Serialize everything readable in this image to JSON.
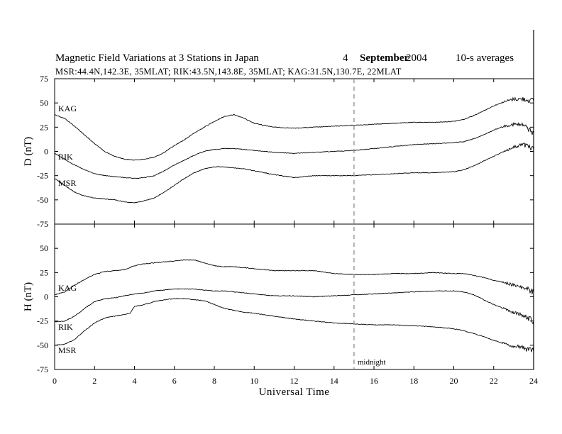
{
  "header": {
    "title": "Magnetic Field Variations at 3 Stations in Japan",
    "day": "4",
    "month": "September",
    "year": "2004",
    "averaging": "10-s averages",
    "stations": "MSR:44.4N,142.3E, 35MLAT;  RIK:43.5N,143.8E, 35MLAT;  KAG:31.5N,130.7E, 22MLAT"
  },
  "chart_data": [
    {
      "type": "line",
      "ylabel": "D (nT)",
      "ylim": [
        -75,
        75
      ],
      "yticks": [
        -75,
        -50,
        -25,
        0,
        25,
        50,
        75
      ],
      "xlim": [
        0,
        24
      ],
      "series": [
        {
          "name": "KAG",
          "x": [
            0,
            0.5,
            1,
            1.5,
            2,
            2.5,
            3,
            3.5,
            4,
            4.5,
            5,
            5.5,
            6,
            6.5,
            7,
            7.5,
            8,
            8.5,
            9,
            9.5,
            10,
            11,
            12,
            13,
            14,
            15,
            16,
            17,
            18,
            19,
            20,
            20.5,
            21,
            21.5,
            22,
            22.5,
            23,
            23.5,
            24
          ],
          "y": [
            38,
            34,
            26,
            17,
            8,
            0,
            -5,
            -8,
            -9,
            -8,
            -6,
            -1,
            6,
            12,
            19,
            25,
            31,
            36,
            38,
            34,
            29,
            25,
            24,
            25,
            26,
            27,
            28,
            29,
            30,
            30,
            31,
            33,
            37,
            42,
            47,
            51,
            54,
            54,
            52
          ]
        },
        {
          "name": "RIK",
          "x": [
            0,
            0.5,
            1,
            1.5,
            2,
            2.5,
            3,
            3.5,
            4,
            4.5,
            5,
            5.5,
            6,
            6.5,
            7,
            7.5,
            8,
            8.5,
            9,
            9.5,
            10,
            11,
            12,
            13,
            14,
            15,
            16,
            17,
            18,
            19,
            20,
            20.5,
            21,
            21.5,
            22,
            22.5,
            23,
            23.5,
            24
          ],
          "y": [
            -2,
            -8,
            -14,
            -19,
            -23,
            -25,
            -26,
            -27,
            -28,
            -27,
            -25,
            -20,
            -14,
            -9,
            -4,
            0,
            2,
            3,
            3,
            2,
            1,
            -1,
            -2,
            -1,
            0,
            1,
            3,
            5,
            7,
            8,
            9,
            10,
            13,
            17,
            22,
            26,
            28,
            27,
            19
          ]
        },
        {
          "name": "MSR",
          "x": [
            0,
            0.5,
            1,
            1.5,
            2,
            2.5,
            3,
            3.5,
            4,
            4.5,
            5,
            5.5,
            6,
            6.5,
            7,
            7.5,
            8,
            8.5,
            9,
            9.5,
            10,
            11,
            12,
            13,
            14,
            15,
            16,
            17,
            18,
            19,
            20,
            20.5,
            21,
            21.5,
            22,
            22.5,
            23,
            23.5,
            24
          ],
          "y": [
            -28,
            -35,
            -42,
            -46,
            -48,
            -49,
            -50,
            -52,
            -53,
            -51,
            -48,
            -42,
            -35,
            -28,
            -22,
            -18,
            -16,
            -16,
            -17,
            -18,
            -20,
            -24,
            -27,
            -25,
            -25,
            -25,
            -24,
            -23,
            -22,
            -22,
            -21,
            -19,
            -15,
            -10,
            -5,
            0,
            4,
            7,
            2
          ]
        }
      ],
      "labels": [
        "KAG",
        "RIK",
        "MSR"
      ]
    },
    {
      "type": "line",
      "ylabel": "H (nT)",
      "ylim": [
        -75,
        75
      ],
      "yticks": [
        -75,
        -50,
        -25,
        0,
        25,
        50
      ],
      "xlim": [
        0,
        24
      ],
      "xticks": [
        0,
        2,
        4,
        6,
        8,
        10,
        12,
        14,
        16,
        18,
        20,
        22,
        24
      ],
      "xlabel": "Universal Time",
      "annotation": "midnight",
      "annotation_x": 15,
      "series": [
        {
          "name": "KAG",
          "x": [
            0,
            0.5,
            1,
            1.5,
            2,
            2.5,
            3,
            3.5,
            4,
            4.5,
            5,
            5.5,
            6,
            6.5,
            7,
            7.5,
            8,
            8.5,
            9,
            9.5,
            10,
            11,
            12,
            13,
            14,
            15,
            16,
            17,
            18,
            19,
            20,
            20.5,
            21,
            21.5,
            22,
            22.5,
            23,
            23.5,
            24
          ],
          "y": [
            2,
            5,
            12,
            18,
            23,
            26,
            27,
            28,
            32,
            34,
            35,
            36,
            37,
            38,
            38,
            35,
            32,
            31,
            31,
            30,
            29,
            27,
            27,
            27,
            24,
            23,
            23,
            24,
            24,
            25,
            24,
            24,
            22,
            20,
            17,
            15,
            12,
            9,
            5
          ]
        },
        {
          "name": "RIK",
          "x": [
            0,
            0.5,
            1,
            1.5,
            2,
            2.5,
            3,
            3.5,
            4,
            4.5,
            5,
            5.5,
            6,
            6.5,
            7,
            7.5,
            8,
            8.5,
            9,
            9.5,
            10,
            11,
            12,
            13,
            14,
            15,
            16,
            17,
            18,
            19,
            20,
            20.5,
            21,
            21.5,
            22,
            22.5,
            23,
            23.5,
            24
          ],
          "y": [
            -26,
            -25,
            -20,
            -12,
            -5,
            -2,
            -1,
            1,
            3,
            4,
            6,
            7,
            8,
            8,
            8,
            7,
            6,
            6,
            5,
            4,
            3,
            1,
            1,
            0,
            1,
            2,
            3,
            4,
            5,
            6,
            6,
            5,
            2,
            -3,
            -8,
            -12,
            -16,
            -20,
            -25
          ]
        },
        {
          "name": "MSR",
          "x": [
            0,
            0.5,
            1,
            1.5,
            2,
            2.5,
            3,
            3.5,
            3.8,
            3.9,
            4,
            4.5,
            5,
            5.5,
            6,
            6.5,
            7,
            7.5,
            8,
            8.5,
            9,
            9.5,
            10,
            11,
            12,
            13,
            14,
            15,
            16,
            17,
            18,
            19,
            20,
            20.5,
            21,
            21.5,
            22,
            22.5,
            23,
            23.5,
            24
          ],
          "y": [
            -50,
            -49,
            -44,
            -35,
            -27,
            -22,
            -20,
            -18,
            -17,
            -13,
            -10,
            -8,
            -5,
            -3,
            -2,
            -2,
            -3,
            -4,
            -8,
            -12,
            -14,
            -16,
            -17,
            -20,
            -23,
            -25,
            -27,
            -28,
            -29,
            -29,
            -30,
            -31,
            -33,
            -35,
            -38,
            -41,
            -45,
            -48,
            -51,
            -53,
            -56
          ]
        }
      ],
      "labels": [
        "KAG",
        "RIK",
        "MSR"
      ]
    }
  ]
}
